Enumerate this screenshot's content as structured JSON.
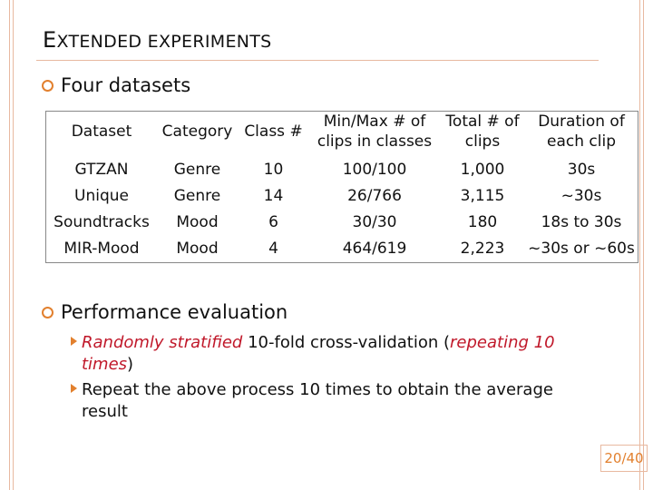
{
  "header": {
    "title": "EXTENDED EXPERIMENTS"
  },
  "bullets": [
    {
      "text": "Four datasets"
    },
    {
      "text": "Performance evaluation"
    }
  ],
  "table": {
    "columns": [
      "Dataset",
      "Category",
      "Class #",
      "Min/Max # of clips in classes",
      "Total # of clips",
      "Duration of each clip"
    ],
    "rows": [
      [
        "GTZAN",
        "Genre",
        "10",
        "100/100",
        "1,000",
        "30s"
      ],
      [
        "Unique",
        "Genre",
        "14",
        "26/766",
        "3,115",
        "~30s"
      ],
      [
        "Soundtracks",
        "Mood",
        "6",
        "30/30",
        "180",
        "18s to 30s"
      ],
      [
        "MIR-Mood",
        "Mood",
        "4",
        "464/619",
        "2,223",
        "~30s or ~60s"
      ]
    ]
  },
  "sub_bullets": [
    [
      {
        "text": "Randomly stratified",
        "emphasis": true
      },
      {
        "text": " 10-fold cross-validation (",
        "emphasis": false
      },
      {
        "text": "repeating 10 times",
        "emphasis": true
      },
      {
        "text": ")",
        "emphasis": false
      }
    ],
    [
      {
        "text": "Repeat the above process 10 times to obtain the average result",
        "emphasis": false
      }
    ]
  ],
  "footer": {
    "page": "20/40"
  }
}
